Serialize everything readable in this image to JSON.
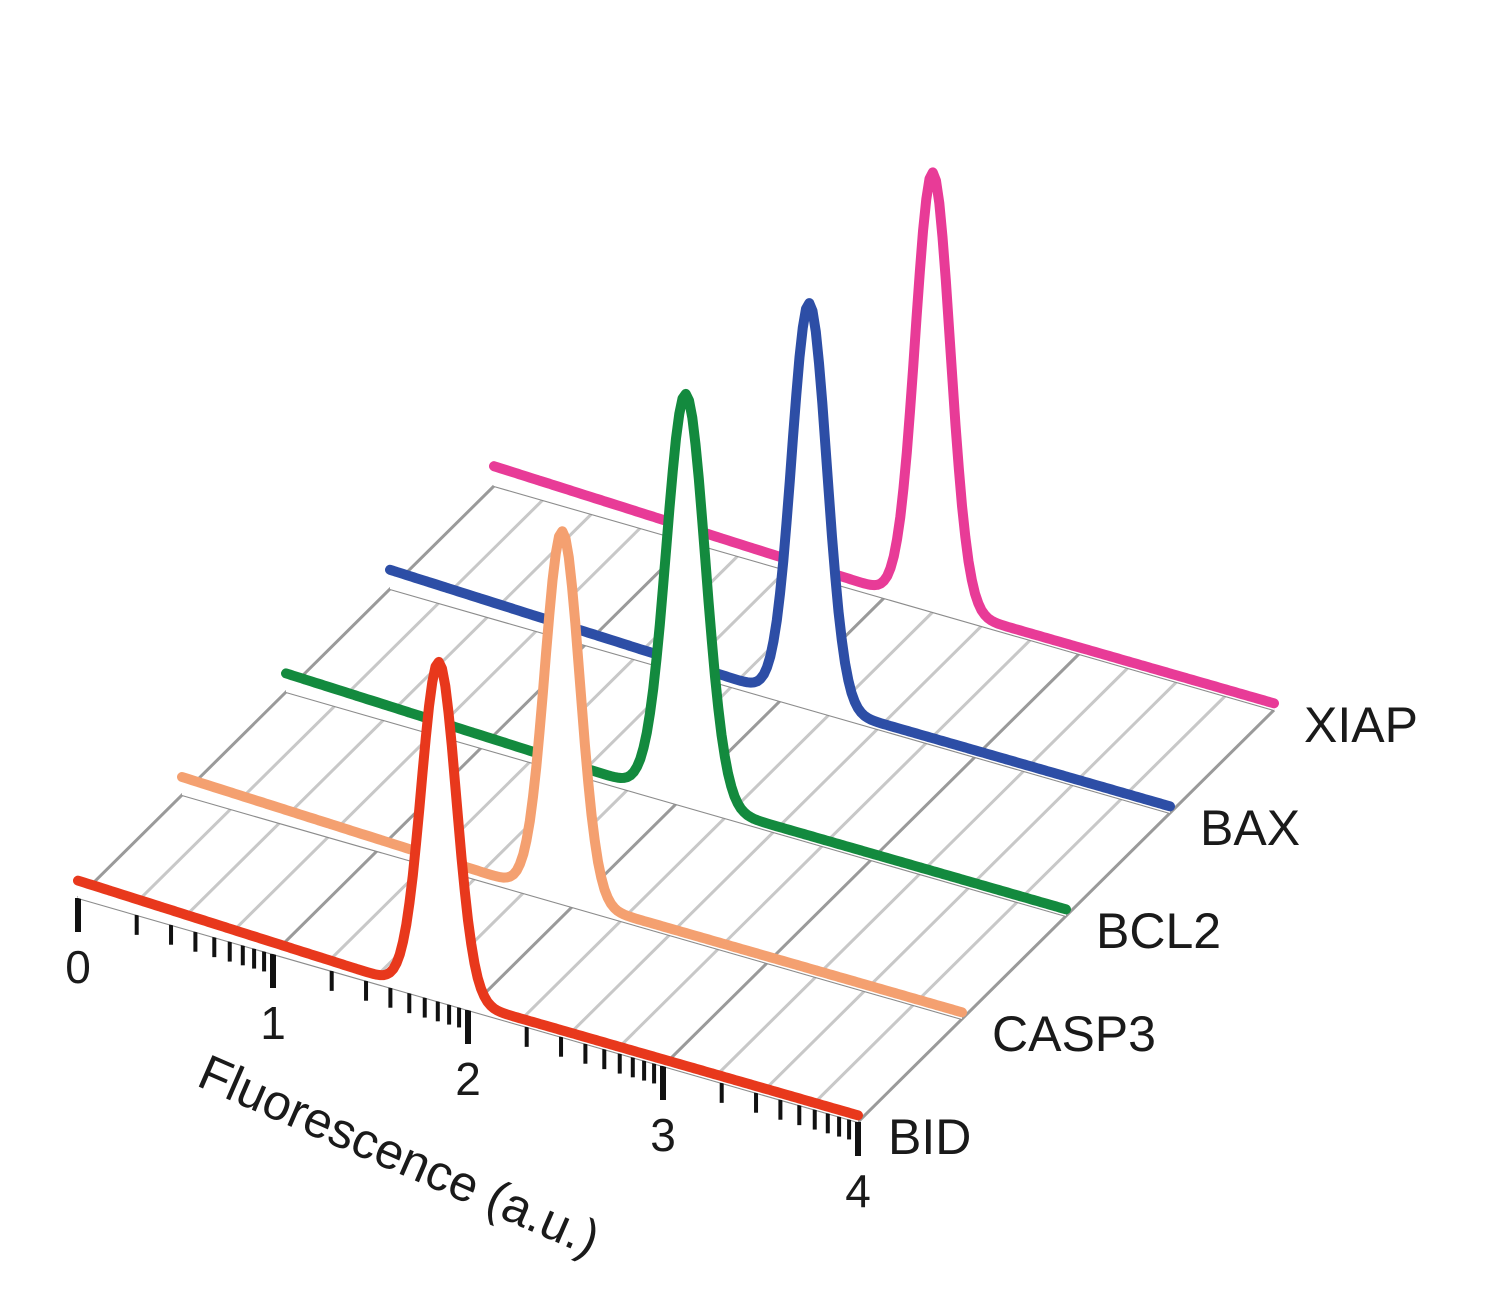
{
  "chart_data": {
    "type": "waterfall-line",
    "title": "",
    "xlabel": "Fluorescence (a.u.)",
    "xlim": [
      0,
      4
    ],
    "x_ticks": [
      0,
      1,
      2,
      3,
      4
    ],
    "x_tick_labels": [
      "0",
      "1",
      "2",
      "3",
      "4"
    ],
    "grid": true,
    "series": [
      {
        "name": "BID",
        "color": "#e8381c",
        "peak_x": 1.85,
        "peak_height": 1.0,
        "width": 0.09
      },
      {
        "name": "CASP3",
        "color": "#f4a070",
        "peak_x": 1.95,
        "peak_height": 1.1,
        "width": 0.09
      },
      {
        "name": "BCL2",
        "color": "#138a3e",
        "peak_x": 2.05,
        "peak_height": 1.22,
        "width": 0.1
      },
      {
        "name": "BAX",
        "color": "#2d4ea6",
        "peak_x": 2.15,
        "peak_height": 1.2,
        "width": 0.09
      },
      {
        "name": "XIAP",
        "color": "#e83b97",
        "peak_x": 2.25,
        "peak_height": 1.3,
        "width": 0.09
      }
    ]
  }
}
